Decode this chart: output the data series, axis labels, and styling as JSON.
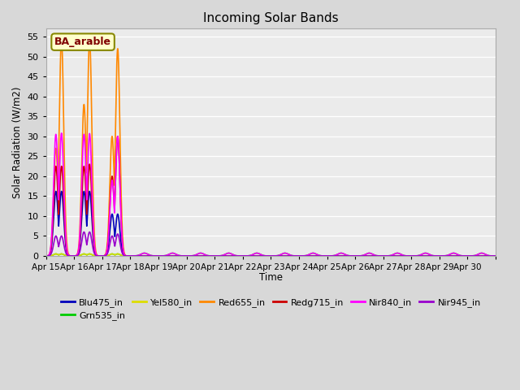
{
  "title": "Incoming Solar Bands",
  "xlabel": "Time",
  "ylabel": "Solar Radiation (W/m2)",
  "ylim": [
    0,
    57
  ],
  "yticks": [
    0,
    5,
    10,
    15,
    20,
    25,
    30,
    35,
    40,
    45,
    50,
    55
  ],
  "annotation_text": "BA_arable",
  "series": [
    {
      "name": "Blu475_in",
      "color": "#0000bb",
      "lw": 1.2
    },
    {
      "name": "Grn535_in",
      "color": "#00cc00",
      "lw": 1.2
    },
    {
      "name": "Yel580_in",
      "color": "#dddd00",
      "lw": 1.2
    },
    {
      "name": "Red655_in",
      "color": "#ff8800",
      "lw": 1.2
    },
    {
      "name": "Redg715_in",
      "color": "#cc0000",
      "lw": 1.2
    },
    {
      "name": "Nir840_in",
      "color": "#ff00ff",
      "lw": 1.2
    },
    {
      "name": "Nir945_in",
      "color": "#9900cc",
      "lw": 1.2
    }
  ],
  "n_days": 16,
  "day_labels": [
    "Apr 15",
    "Apr 16",
    "Apr 17",
    "Apr 18",
    "Apr 19",
    "Apr 20",
    "Apr 21",
    "Apr 22",
    "Apr 23",
    "Apr 24",
    "Apr 25",
    "Apr 26",
    "Apr 27",
    "Apr 28",
    "Apr 29",
    "Apr 30"
  ],
  "spikes": [
    {
      "day": 0,
      "peaks": [
        16.2,
        0.0,
        0.0,
        54.5,
        27.2,
        31.0,
        5.0
      ]
    },
    {
      "day": 0,
      "peaks": [
        16.2,
        0.0,
        0.0,
        47.0,
        27.0,
        30.5,
        5.0
      ]
    },
    {
      "day": 1,
      "peaks": [
        16.2,
        0.0,
        0.0,
        54.5,
        26.0,
        30.7,
        6.0
      ]
    },
    {
      "day": 1,
      "peaks": [
        16.2,
        0.0,
        0.0,
        38.5,
        23.0,
        25.5,
        5.5
      ]
    },
    {
      "day": 2,
      "peaks": [
        10.5,
        0.0,
        0.0,
        52.0,
        30.0,
        30.0,
        6.0
      ]
    },
    {
      "day": 2,
      "peaks": [
        10.5,
        0.0,
        0.0,
        35.0,
        20.0,
        19.0,
        5.0
      ]
    }
  ],
  "later_peak": [
    0.0,
    0.8,
    0.0,
    0.0,
    0.0,
    0.8,
    0.0
  ]
}
